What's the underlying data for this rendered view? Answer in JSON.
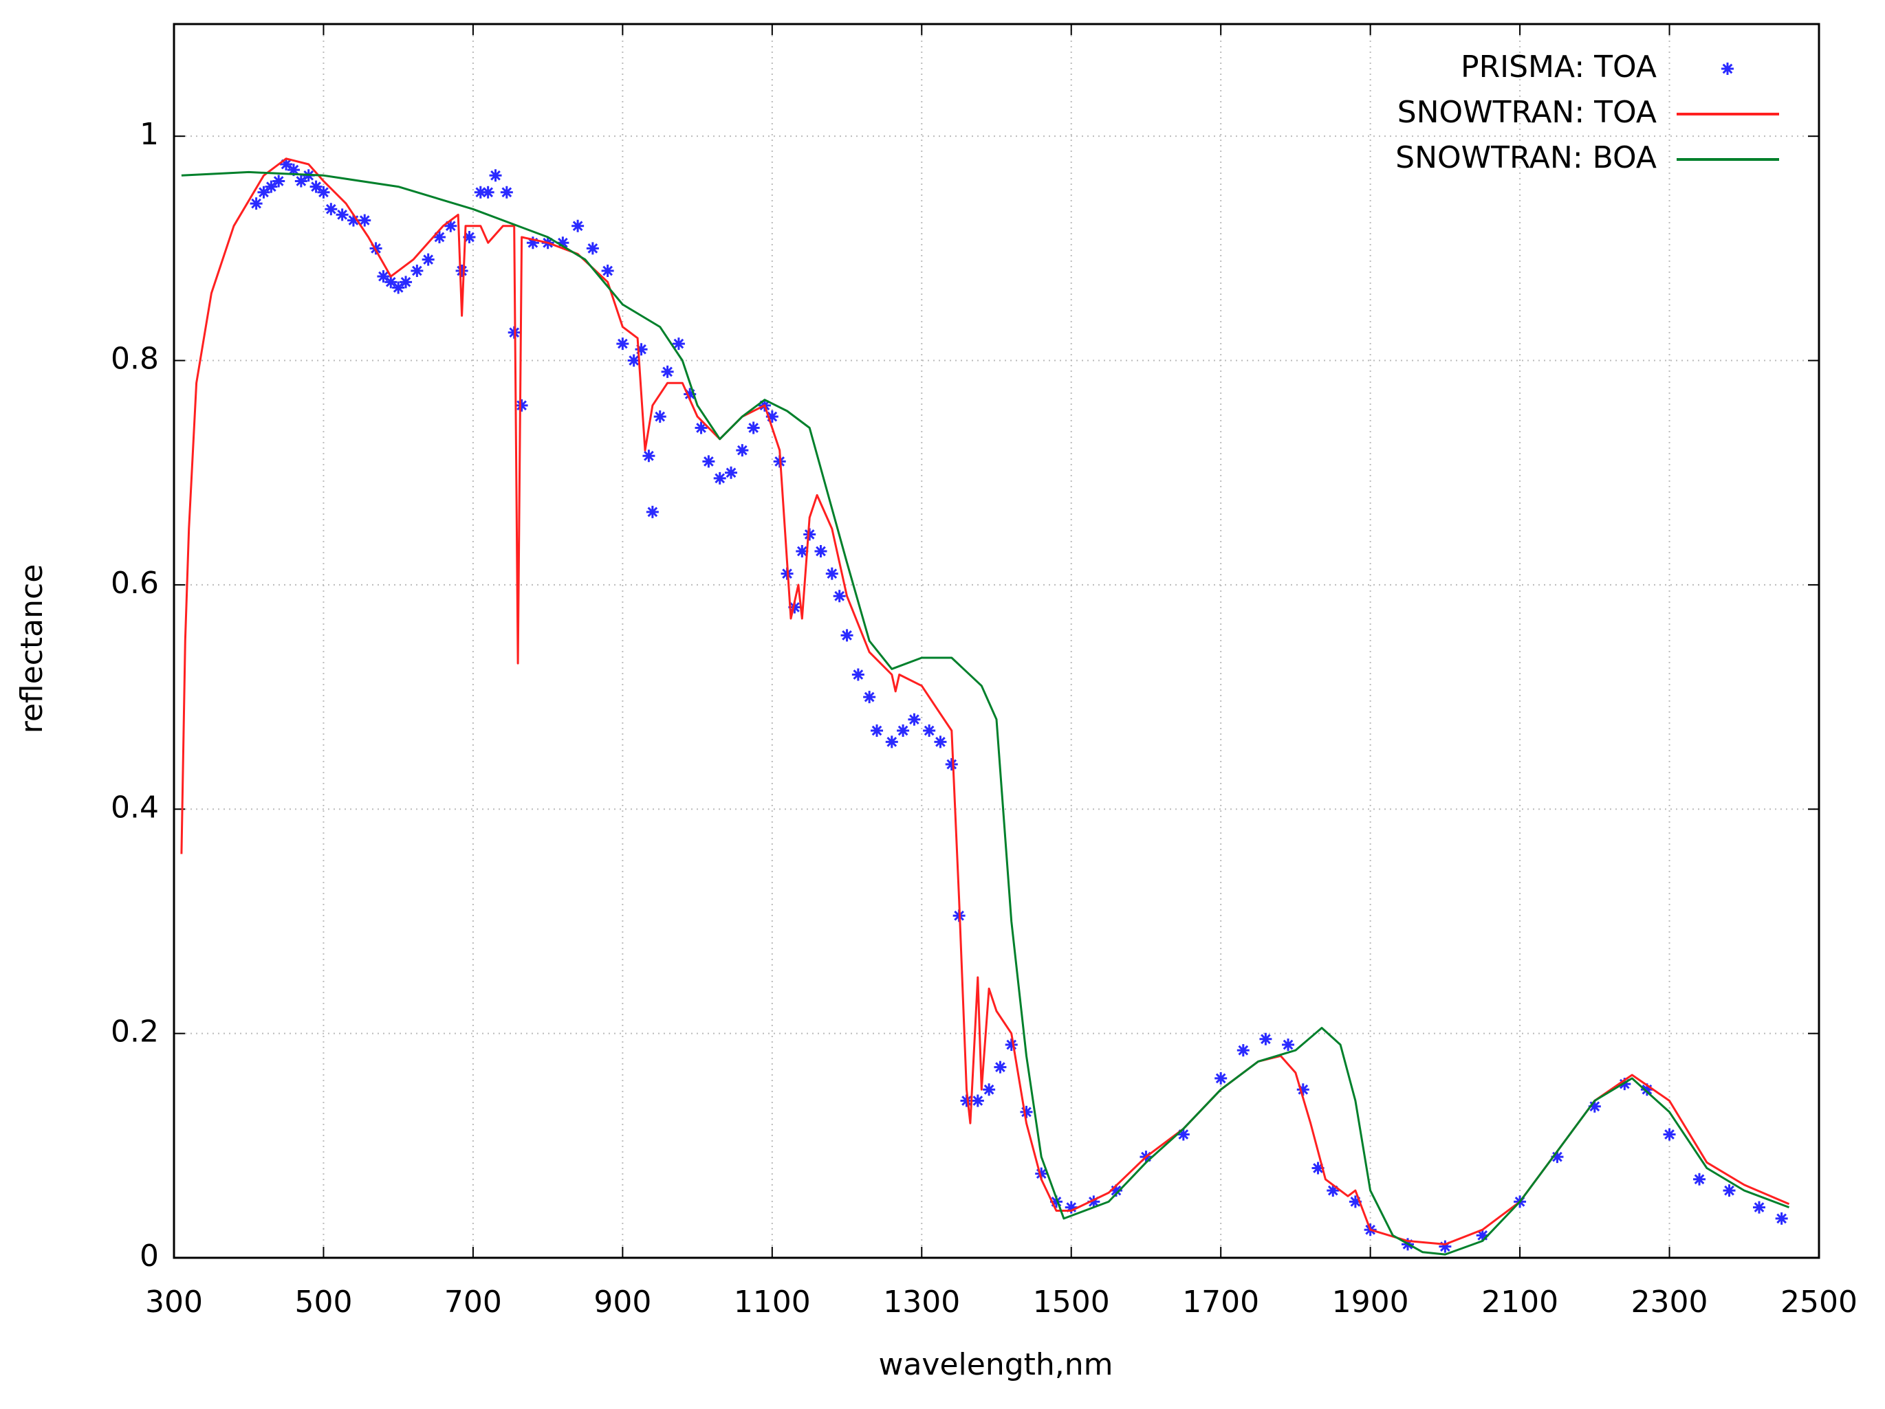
{
  "chart_data": {
    "type": "line",
    "xlabel": "wavelength,nm",
    "ylabel": "reflectance",
    "xlim": [
      300,
      2500
    ],
    "ylim": [
      0,
      1.1
    ],
    "xticks": [
      300,
      500,
      700,
      900,
      1100,
      1300,
      1500,
      1700,
      1900,
      2100,
      2300,
      2500
    ],
    "yticks": [
      0,
      0.2,
      0.4,
      0.6,
      0.8,
      1
    ],
    "grid": true,
    "legend": "upper right",
    "series": [
      {
        "name": "PRISMA: TOA",
        "color": "#2a2aff",
        "style": "scatter",
        "x": [
          410,
          420,
          430,
          440,
          450,
          460,
          470,
          480,
          490,
          500,
          510,
          525,
          540,
          555,
          570,
          580,
          590,
          600,
          610,
          625,
          640,
          655,
          670,
          685,
          695,
          710,
          720,
          730,
          745,
          755,
          765,
          780,
          800,
          820,
          840,
          860,
          880,
          900,
          915,
          925,
          935,
          940,
          950,
          960,
          975,
          990,
          1005,
          1015,
          1030,
          1045,
          1060,
          1075,
          1090,
          1100,
          1110,
          1120,
          1130,
          1140,
          1150,
          1165,
          1180,
          1190,
          1200,
          1215,
          1230,
          1240,
          1260,
          1275,
          1290,
          1310,
          1325,
          1340,
          1350,
          1360,
          1375,
          1390,
          1405,
          1420,
          1440,
          1460,
          1480,
          1500,
          1530,
          1560,
          1600,
          1650,
          1700,
          1730,
          1760,
          1790,
          1810,
          1830,
          1850,
          1880,
          1900,
          1950,
          2000,
          2050,
          2100,
          2150,
          2200,
          2240,
          2270,
          2300,
          2340,
          2380,
          2420,
          2450
        ],
        "values": [
          0.94,
          0.95,
          0.955,
          0.96,
          0.975,
          0.97,
          0.96,
          0.965,
          0.955,
          0.95,
          0.935,
          0.93,
          0.925,
          0.925,
          0.9,
          0.875,
          0.87,
          0.865,
          0.87,
          0.88,
          0.89,
          0.91,
          0.92,
          0.88,
          0.91,
          0.95,
          0.95,
          0.965,
          0.95,
          0.825,
          0.76,
          0.905,
          0.905,
          0.905,
          0.92,
          0.9,
          0.88,
          0.815,
          0.8,
          0.81,
          0.715,
          0.665,
          0.75,
          0.79,
          0.815,
          0.77,
          0.74,
          0.71,
          0.695,
          0.7,
          0.72,
          0.74,
          0.76,
          0.75,
          0.71,
          0.61,
          0.58,
          0.63,
          0.645,
          0.63,
          0.61,
          0.59,
          0.555,
          0.52,
          0.5,
          0.47,
          0.46,
          0.47,
          0.48,
          0.47,
          0.46,
          0.44,
          0.305,
          0.14,
          0.14,
          0.15,
          0.17,
          0.19,
          0.13,
          0.075,
          0.05,
          0.045,
          0.05,
          0.06,
          0.09,
          0.11,
          0.16,
          0.185,
          0.195,
          0.19,
          0.15,
          0.08,
          0.06,
          0.05,
          0.025,
          0.012,
          0.01,
          0.02,
          0.05,
          0.09,
          0.135,
          0.155,
          0.15,
          0.11,
          0.07,
          0.06,
          0.045,
          0.035
        ]
      },
      {
        "name": "SNOWTRAN: TOA",
        "color": "#ff2020",
        "style": "line",
        "x": [
          310,
          315,
          320,
          330,
          350,
          380,
          420,
          450,
          480,
          500,
          530,
          560,
          590,
          620,
          660,
          680,
          685,
          690,
          710,
          720,
          740,
          755,
          760,
          765,
          800,
          840,
          880,
          900,
          920,
          930,
          940,
          960,
          980,
          1000,
          1030,
          1060,
          1090,
          1110,
          1125,
          1135,
          1140,
          1150,
          1160,
          1180,
          1200,
          1230,
          1260,
          1265,
          1270,
          1300,
          1320,
          1340,
          1350,
          1360,
          1365,
          1375,
          1380,
          1390,
          1400,
          1420,
          1440,
          1460,
          1480,
          1500,
          1550,
          1600,
          1650,
          1700,
          1750,
          1780,
          1800,
          1820,
          1840,
          1870,
          1880,
          1900,
          1950,
          2000,
          2050,
          2100,
          2150,
          2200,
          2250,
          2300,
          2350,
          2400,
          2460
        ],
        "values": [
          0.36,
          0.55,
          0.65,
          0.78,
          0.86,
          0.92,
          0.965,
          0.98,
          0.975,
          0.96,
          0.94,
          0.91,
          0.875,
          0.89,
          0.92,
          0.93,
          0.84,
          0.92,
          0.92,
          0.905,
          0.92,
          0.92,
          0.53,
          0.91,
          0.905,
          0.895,
          0.87,
          0.83,
          0.82,
          0.72,
          0.76,
          0.78,
          0.78,
          0.75,
          0.73,
          0.75,
          0.76,
          0.72,
          0.57,
          0.6,
          0.57,
          0.66,
          0.68,
          0.65,
          0.59,
          0.54,
          0.52,
          0.505,
          0.52,
          0.51,
          0.49,
          0.47,
          0.32,
          0.15,
          0.12,
          0.25,
          0.15,
          0.24,
          0.22,
          0.2,
          0.12,
          0.07,
          0.042,
          0.042,
          0.058,
          0.09,
          0.115,
          0.15,
          0.175,
          0.18,
          0.165,
          0.12,
          0.07,
          0.055,
          0.06,
          0.025,
          0.015,
          0.012,
          0.025,
          0.05,
          0.095,
          0.14,
          0.163,
          0.14,
          0.085,
          0.065,
          0.048
        ]
      },
      {
        "name": "SNOWTRAN: BOA",
        "color": "#00802b",
        "style": "line",
        "x": [
          310,
          400,
          500,
          600,
          700,
          800,
          850,
          900,
          950,
          980,
          1000,
          1030,
          1060,
          1090,
          1120,
          1150,
          1200,
          1230,
          1260,
          1300,
          1340,
          1380,
          1400,
          1420,
          1440,
          1460,
          1490,
          1550,
          1600,
          1650,
          1700,
          1750,
          1800,
          1835,
          1860,
          1880,
          1900,
          1930,
          1970,
          2000,
          2050,
          2100,
          2150,
          2200,
          2250,
          2300,
          2350,
          2400,
          2460
        ],
        "values": [
          0.965,
          0.968,
          0.965,
          0.955,
          0.935,
          0.91,
          0.89,
          0.85,
          0.83,
          0.8,
          0.76,
          0.73,
          0.75,
          0.765,
          0.755,
          0.74,
          0.62,
          0.55,
          0.525,
          0.535,
          0.535,
          0.51,
          0.48,
          0.3,
          0.18,
          0.09,
          0.035,
          0.05,
          0.085,
          0.115,
          0.15,
          0.175,
          0.185,
          0.205,
          0.19,
          0.14,
          0.06,
          0.02,
          0.005,
          0.003,
          0.015,
          0.05,
          0.095,
          0.14,
          0.16,
          0.13,
          0.08,
          0.06,
          0.045
        ]
      }
    ]
  }
}
